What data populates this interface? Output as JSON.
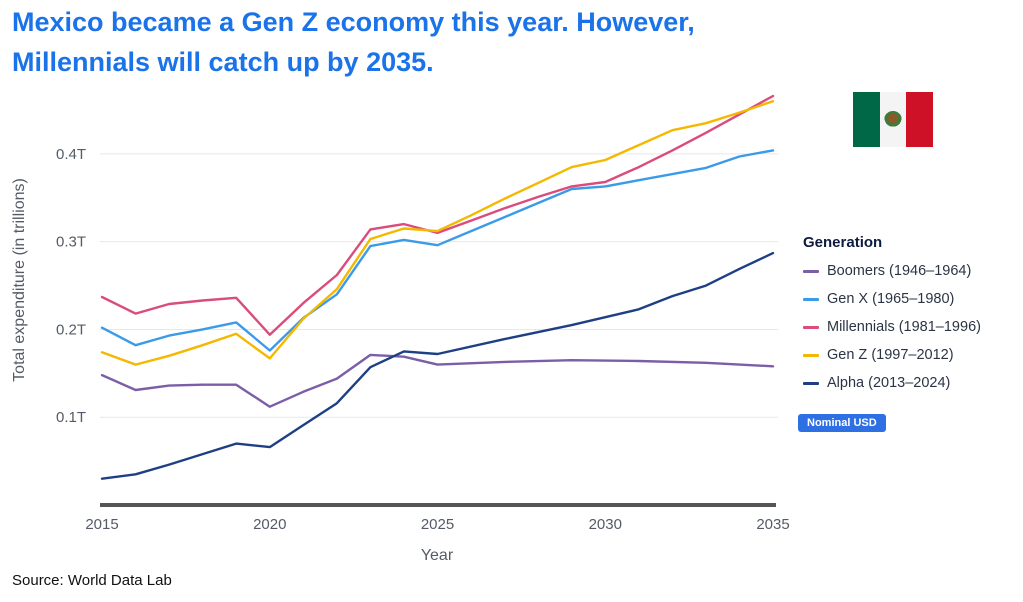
{
  "title": {
    "line1": "Mexico became a Gen Z economy this year. However,",
    "line2": "Millennials will catch up by 2035."
  },
  "source": "Source: World Data Lab",
  "badge": "Nominal USD",
  "flag": {
    "label": "Mexico flag"
  },
  "chart_data": {
    "type": "line",
    "title": "Mexico became a Gen Z economy this year. However, Millennials will catch up by 2035.",
    "xlabel": "Year",
    "ylabel": "Total expenditure (in trillions)",
    "xlim": [
      2015,
      2035
    ],
    "ylim": [
      0,
      0.45
    ],
    "xticks": [
      2015,
      2020,
      2025,
      2030,
      2035
    ],
    "xtick_labels": [
      "2015",
      "2020",
      "2025",
      "2030",
      "2035"
    ],
    "yticks": [
      0.1,
      0.2,
      0.3,
      0.4
    ],
    "ytick_labels": [
      "0.1T",
      "0.2T",
      "0.3T",
      "0.4T"
    ],
    "grid": "horizontal",
    "legend_title": "Generation",
    "legend_position": "right",
    "series": [
      {
        "name": "Boomers (1946–1964)",
        "key": "boomers",
        "color": "#7b5ea7",
        "points": [
          [
            2015,
            0.148
          ],
          [
            2016,
            0.131
          ],
          [
            2017,
            0.136
          ],
          [
            2018,
            0.137
          ],
          [
            2019,
            0.137
          ],
          [
            2020,
            0.112
          ],
          [
            2021,
            0.129
          ],
          [
            2022,
            0.144
          ],
          [
            2023,
            0.171
          ],
          [
            2024,
            0.169
          ],
          [
            2025,
            0.16
          ],
          [
            2027,
            0.163
          ],
          [
            2029,
            0.165
          ],
          [
            2031,
            0.164
          ],
          [
            2033,
            0.162
          ],
          [
            2035,
            0.158
          ]
        ]
      },
      {
        "name": "Gen X (1965–1980)",
        "key": "genx",
        "color": "#3b9be8",
        "points": [
          [
            2015,
            0.202
          ],
          [
            2016,
            0.182
          ],
          [
            2017,
            0.193
          ],
          [
            2018,
            0.2
          ],
          [
            2019,
            0.208
          ],
          [
            2020,
            0.176
          ],
          [
            2021,
            0.213
          ],
          [
            2022,
            0.24
          ],
          [
            2023,
            0.295
          ],
          [
            2024,
            0.302
          ],
          [
            2025,
            0.296
          ],
          [
            2026,
            0.312
          ],
          [
            2027,
            0.328
          ],
          [
            2028,
            0.344
          ],
          [
            2029,
            0.36
          ],
          [
            2030,
            0.363
          ],
          [
            2031,
            0.37
          ],
          [
            2032,
            0.377
          ],
          [
            2033,
            0.384
          ],
          [
            2034,
            0.397
          ],
          [
            2035,
            0.404
          ]
        ]
      },
      {
        "name": "Millennials (1981–1996)",
        "key": "millennials",
        "color": "#d94c7c",
        "points": [
          [
            2015,
            0.237
          ],
          [
            2016,
            0.218
          ],
          [
            2017,
            0.229
          ],
          [
            2018,
            0.233
          ],
          [
            2019,
            0.236
          ],
          [
            2020,
            0.194
          ],
          [
            2021,
            0.23
          ],
          [
            2022,
            0.262
          ],
          [
            2023,
            0.314
          ],
          [
            2024,
            0.32
          ],
          [
            2025,
            0.31
          ],
          [
            2026,
            0.324
          ],
          [
            2027,
            0.338
          ],
          [
            2028,
            0.351
          ],
          [
            2029,
            0.363
          ],
          [
            2030,
            0.368
          ],
          [
            2031,
            0.385
          ],
          [
            2032,
            0.404
          ],
          [
            2033,
            0.424
          ],
          [
            2034,
            0.445
          ],
          [
            2035,
            0.466
          ]
        ]
      },
      {
        "name": "Gen Z (1997–2012)",
        "key": "genz",
        "color": "#f5b800",
        "points": [
          [
            2015,
            0.174
          ],
          [
            2016,
            0.16
          ],
          [
            2017,
            0.17
          ],
          [
            2018,
            0.182
          ],
          [
            2019,
            0.195
          ],
          [
            2020,
            0.167
          ],
          [
            2021,
            0.212
          ],
          [
            2022,
            0.246
          ],
          [
            2023,
            0.303
          ],
          [
            2024,
            0.315
          ],
          [
            2025,
            0.312
          ],
          [
            2026,
            0.33
          ],
          [
            2027,
            0.349
          ],
          [
            2028,
            0.367
          ],
          [
            2029,
            0.385
          ],
          [
            2030,
            0.393
          ],
          [
            2031,
            0.41
          ],
          [
            2032,
            0.427
          ],
          [
            2033,
            0.435
          ],
          [
            2034,
            0.447
          ],
          [
            2035,
            0.46
          ]
        ]
      },
      {
        "name": "Alpha (2013–2024)",
        "key": "alpha",
        "color": "#1f3f85",
        "points": [
          [
            2015,
            0.03
          ],
          [
            2016,
            0.035
          ],
          [
            2017,
            0.046
          ],
          [
            2018,
            0.058
          ],
          [
            2019,
            0.07
          ],
          [
            2020,
            0.066
          ],
          [
            2021,
            0.091
          ],
          [
            2022,
            0.116
          ],
          [
            2023,
            0.157
          ],
          [
            2024,
            0.175
          ],
          [
            2025,
            0.172
          ],
          [
            2027,
            0.189
          ],
          [
            2029,
            0.205
          ],
          [
            2031,
            0.223
          ],
          [
            2032,
            0.238
          ],
          [
            2033,
            0.25
          ],
          [
            2034,
            0.269
          ],
          [
            2035,
            0.287
          ]
        ]
      }
    ]
  }
}
